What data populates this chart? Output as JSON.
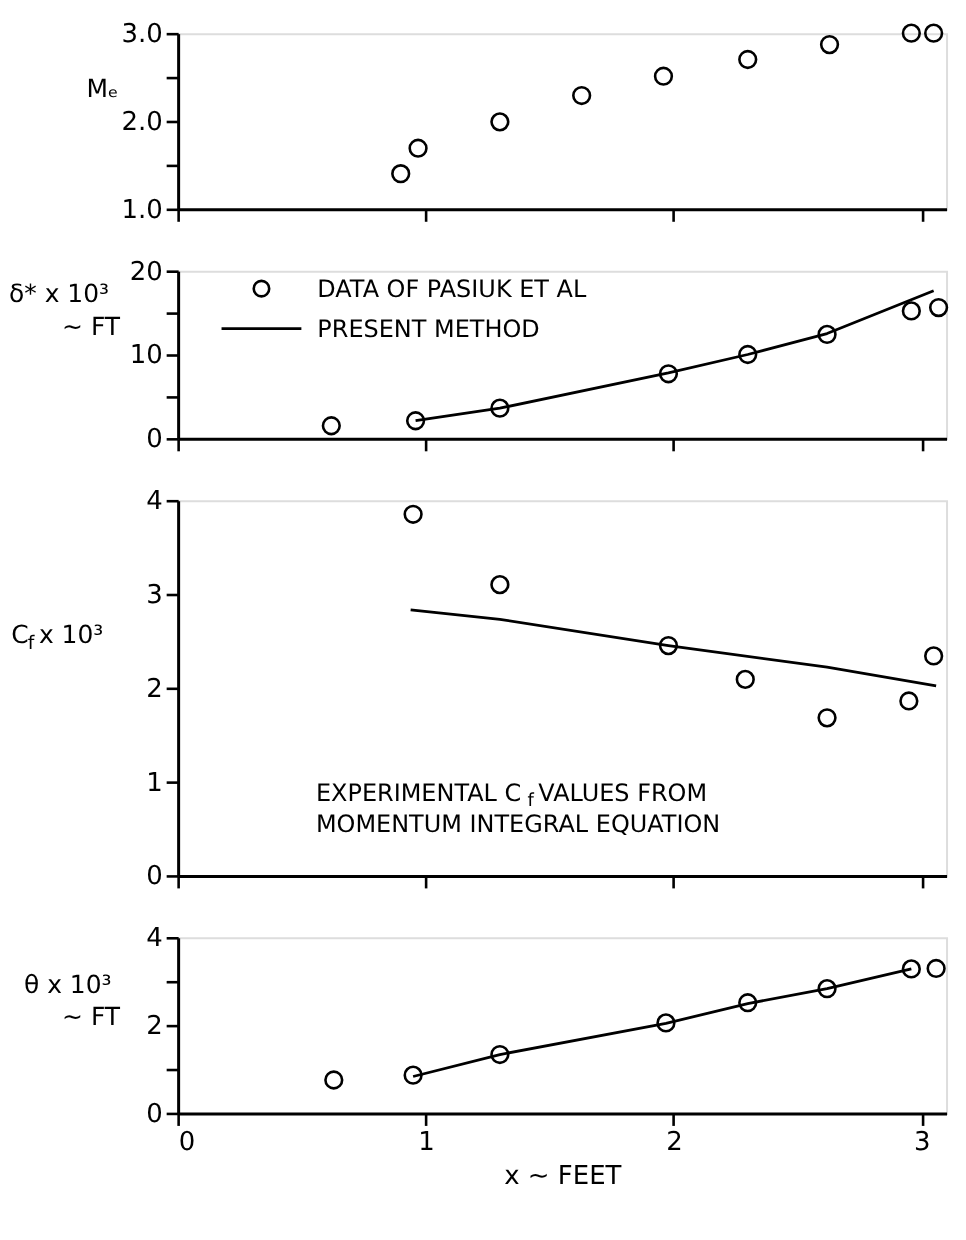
{
  "chart_data": [
    {
      "type": "scatter",
      "ylabel": "Mₑ",
      "marker": "circle",
      "grid": false,
      "tick_labels": "y",
      "legend": false,
      "xlim": [
        0,
        3.1
      ],
      "xticks": [
        0,
        1,
        2,
        3
      ],
      "ylim": [
        1.0,
        3.0
      ],
      "yticks": [
        {
          "value": 1.0,
          "label": "1.0"
        },
        {
          "value": 1.5,
          "label": null
        },
        {
          "value": 2.0,
          "label": "2.0"
        },
        {
          "value": 2.5,
          "label": null
        },
        {
          "value": 3.0,
          "label": "3.0"
        }
      ],
      "series": [
        {
          "color": "#000000",
          "x": [
            0.9,
            0.97,
            1.3,
            1.63,
            1.96,
            2.3,
            2.63,
            2.96,
            3.05
          ],
          "values": [
            1.4,
            1.69,
            1.99,
            2.29,
            2.51,
            2.7,
            2.87,
            3.0,
            3.0
          ]
        }
      ]
    },
    {
      "type": "scatter",
      "ylabel": "δ* x 10³\n~ FT",
      "grid": false,
      "tick_labels": "y",
      "legend": "top left",
      "xlim": [
        0,
        3.1
      ],
      "xticks": [
        0,
        1,
        2,
        3
      ],
      "ylim": [
        0,
        20
      ],
      "yticks": [
        0,
        {
          "value": 5,
          "label": null
        },
        10,
        {
          "value": 15,
          "label": null
        },
        20
      ],
      "series": [
        {
          "name": "DATA OF PASIUK ET AL",
          "marker": "circle",
          "color": "#000000",
          "x": [
            0.62,
            0.96,
            1.3,
            1.98,
            2.3,
            2.62,
            2.96,
            3.07
          ],
          "values": [
            1.5,
            2.1,
            3.6,
            7.7,
            10.0,
            12.4,
            15.2,
            15.6
          ]
        },
        {
          "type": "line",
          "name": "PRESENT METHOD",
          "color": "#000000",
          "line_style": "solid",
          "x": [
            0.96,
            1.3,
            1.98,
            2.3,
            2.62,
            3.05
          ],
          "values": [
            2.1,
            3.6,
            7.8,
            10.0,
            12.5,
            17.6
          ]
        }
      ]
    },
    {
      "type": "scatter",
      "ylabel": "C$_{f}$ x 10³",
      "grid": false,
      "tick_labels": "y",
      "legend": false,
      "xlim": [
        0,
        3.1
      ],
      "xticks": [
        0,
        1,
        2,
        3
      ],
      "ylim": [
        0,
        4
      ],
      "yticks": [
        0,
        1,
        2,
        3,
        4
      ],
      "annotations": [
        "EXPERIMENTAL C$_{f}$ VALUES FROM\nMOMENTUM INTEGRAL EQUATION"
      ],
      "series": [
        {
          "marker": "circle",
          "color": "#000000",
          "x": [
            0.95,
            1.3,
            1.98,
            2.29,
            2.62,
            2.95,
            3.05
          ],
          "values": [
            3.85,
            3.1,
            2.45,
            2.09,
            1.68,
            1.86,
            2.34
          ]
        },
        {
          "type": "line",
          "color": "#000000",
          "line_style": "solid",
          "x": [
            0.94,
            1.3,
            1.98,
            2.62,
            3.06
          ],
          "values": [
            2.83,
            2.73,
            2.45,
            2.22,
            2.02
          ]
        }
      ]
    },
    {
      "type": "scatter",
      "ylabel": "θ x 10³\n~ FT",
      "xlabel": "x ~ FEET",
      "grid": false,
      "legend": false,
      "xlim": [
        0,
        3.1
      ],
      "xticks": [
        0,
        1,
        2,
        3
      ],
      "ylim": [
        0,
        4
      ],
      "yticks": [
        0,
        {
          "value": 1,
          "label": null
        },
        2,
        {
          "value": 3,
          "label": null
        },
        4
      ],
      "series": [
        {
          "marker": "circle",
          "color": "#000000",
          "x": [
            0.63,
            0.95,
            1.3,
            1.97,
            2.3,
            2.62,
            2.96,
            3.06
          ],
          "values": [
            0.75,
            0.86,
            1.33,
            2.05,
            2.51,
            2.83,
            3.28,
            3.29
          ]
        },
        {
          "type": "line",
          "color": "#000000",
          "line_style": "solid",
          "x": [
            0.95,
            1.3,
            1.97,
            2.3,
            2.62,
            2.96
          ],
          "values": [
            0.83,
            1.33,
            2.04,
            2.49,
            2.83,
            3.28
          ]
        }
      ]
    }
  ]
}
